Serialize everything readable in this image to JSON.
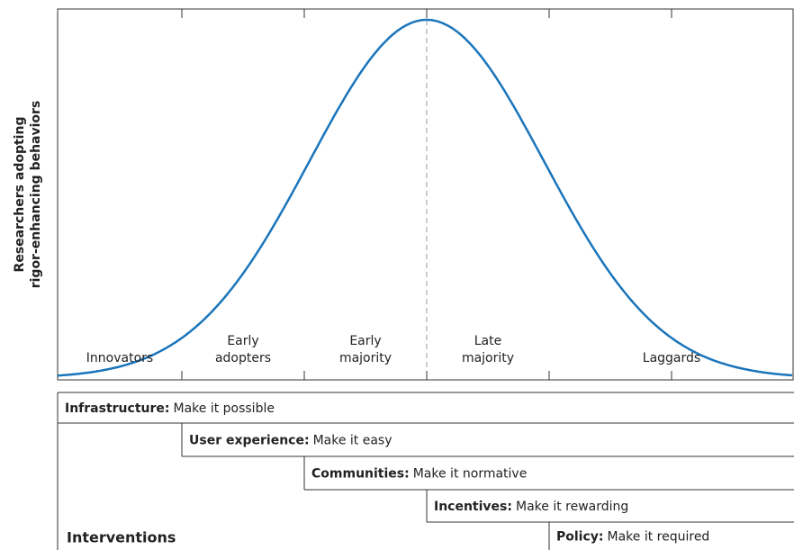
{
  "y_axis_label": [
    "Researchers adopting",
    "rigor-enhancing behaviors"
  ],
  "segments": [
    {
      "lines": [
        "Innovators"
      ]
    },
    {
      "lines": [
        "Early",
        "adopters"
      ]
    },
    {
      "lines": [
        "Early",
        "majority"
      ]
    },
    {
      "lines": [
        "Late",
        "majority"
      ]
    },
    {
      "lines": [
        "Laggards"
      ]
    }
  ],
  "interventions": {
    "title": "Interventions",
    "rows": [
      {
        "name": "Infrastructure:",
        "text": "Make it possible"
      },
      {
        "name": "User experience:",
        "text": "Make it easy"
      },
      {
        "name": "Communities:",
        "text": "Make it normative"
      },
      {
        "name": "Incentives:",
        "text": "Make it rewarding"
      },
      {
        "name": "Policy:",
        "text": "Make it required"
      }
    ]
  }
}
